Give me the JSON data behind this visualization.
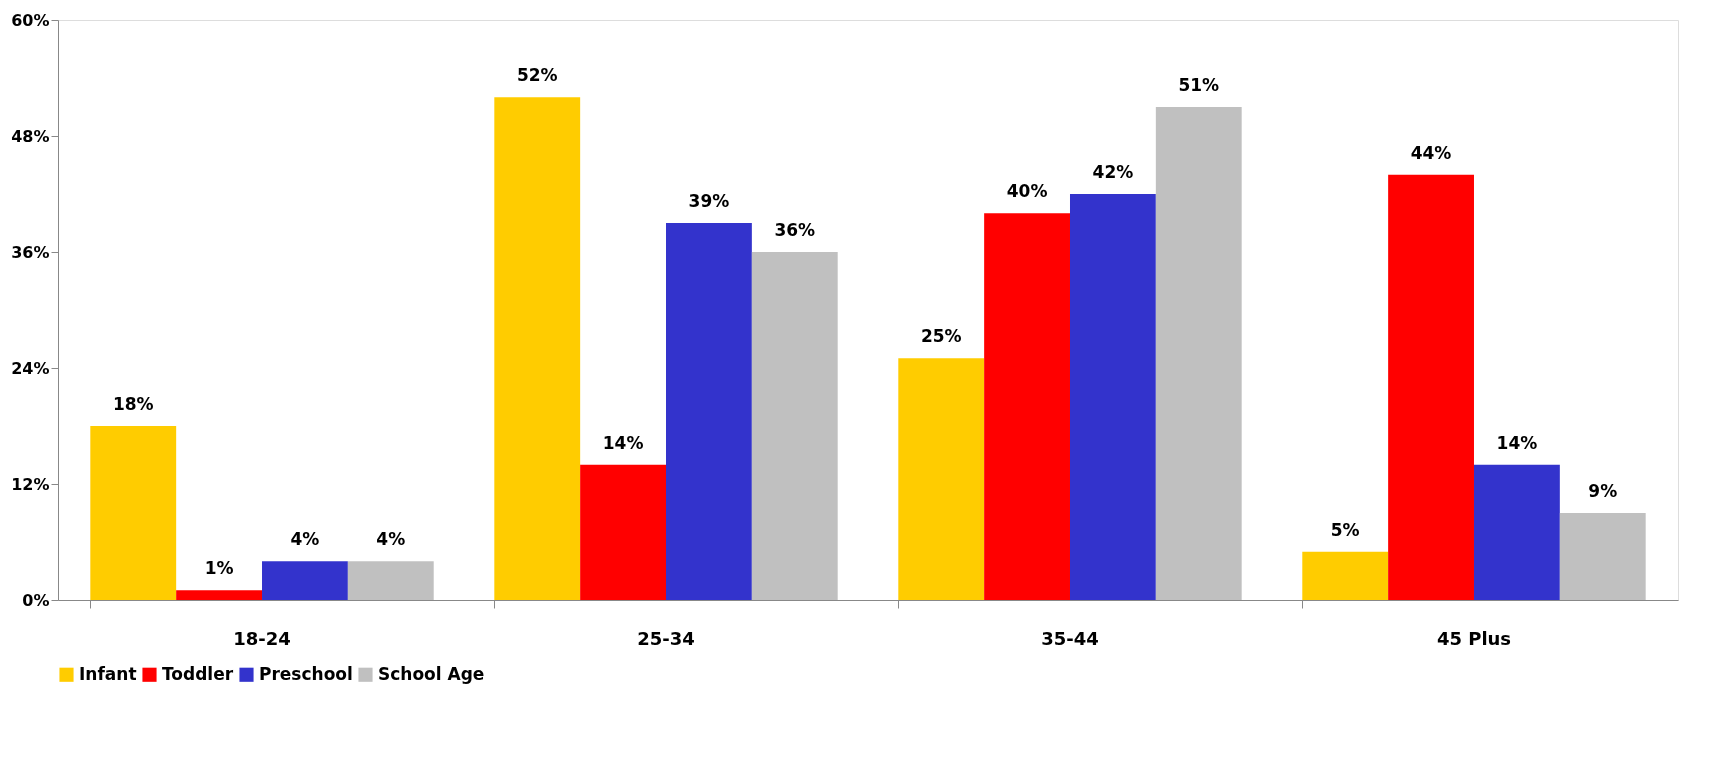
{
  "chart_data": {
    "type": "bar",
    "categories": [
      "18-24",
      "25-34",
      "35-44",
      "45 Plus"
    ],
    "series": [
      {
        "name": "Infant",
        "color": "#ffcc00",
        "values": [
          18,
          52,
          25,
          5
        ],
        "value_labels": [
          "18%",
          "52%",
          "25%",
          "5%"
        ]
      },
      {
        "name": "Toddler",
        "color": "#ff0000",
        "values": [
          1,
          14,
          40,
          44
        ],
        "value_labels": [
          "1%",
          "14%",
          "40%",
          "44%"
        ]
      },
      {
        "name": "Preschool",
        "color": "#3333cc",
        "values": [
          4,
          39,
          42,
          14
        ],
        "value_labels": [
          "4%",
          "39%",
          "42%",
          "14%"
        ]
      },
      {
        "name": "School Age",
        "color": "#c0c0c0",
        "values": [
          4,
          36,
          51,
          9
        ],
        "value_labels": [
          "4%",
          "36%",
          "51%",
          "9%"
        ]
      }
    ],
    "ylim": [
      0,
      60
    ],
    "yticks": [
      {
        "value": 0,
        "label": "0%"
      },
      {
        "value": 12,
        "label": "12%"
      },
      {
        "value": 24,
        "label": "24%"
      },
      {
        "value": 36,
        "label": "36%"
      },
      {
        "value": 48,
        "label": "48%"
      },
      {
        "value": 60,
        "label": "60%"
      }
    ],
    "grid": false,
    "legend": "bottom"
  }
}
